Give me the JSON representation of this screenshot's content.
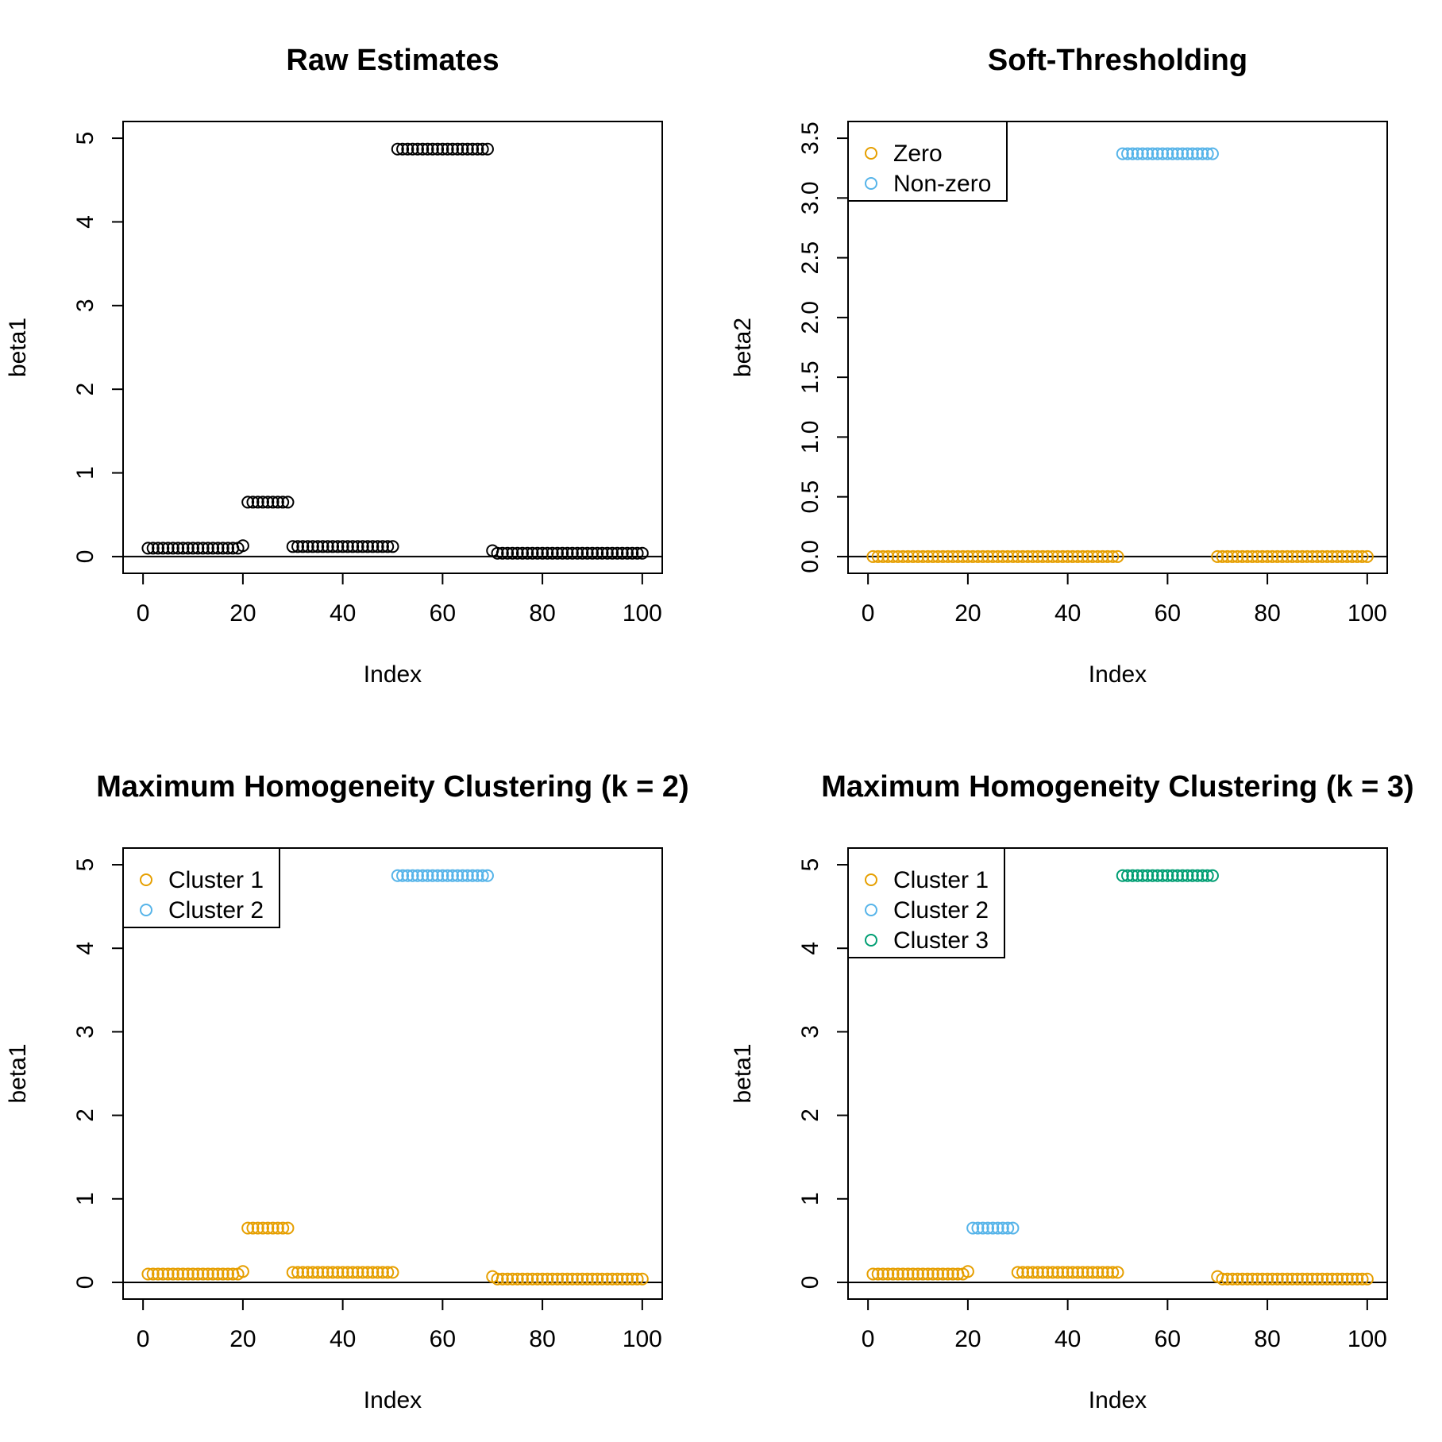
{
  "colors": {
    "black": "#000000",
    "orange": "#E69F00",
    "blue": "#56B4E9",
    "green": "#009E73"
  },
  "chart_data": [
    {
      "type": "scatter",
      "title": "Raw Estimates",
      "xlabel": "Index",
      "ylabel": "beta1",
      "xlim": [
        0,
        100
      ],
      "ylim": [
        0,
        5
      ],
      "xticks": [
        "0",
        "20",
        "40",
        "60",
        "80",
        "100"
      ],
      "yticks": [
        "0",
        "1",
        "2",
        "3",
        "4",
        "5"
      ],
      "hline": 0,
      "legend": null,
      "series": [
        {
          "color": "#000000",
          "segments": [
            {
              "x_from": 1,
              "x_to": 19,
              "y": 0.1
            },
            {
              "x_from": 20,
              "x_to": 20,
              "y": 0.13
            },
            {
              "x_from": 21,
              "x_to": 29,
              "y": 0.65
            },
            {
              "x_from": 30,
              "x_to": 50,
              "y": 0.12
            },
            {
              "x_from": 51,
              "x_to": 69,
              "y": 4.87
            },
            {
              "x_from": 70,
              "x_to": 70,
              "y": 0.07
            },
            {
              "x_from": 71,
              "x_to": 100,
              "y": 0.04
            }
          ]
        }
      ]
    },
    {
      "type": "scatter",
      "title": "Soft-Thresholding",
      "xlabel": "Index",
      "ylabel": "beta2",
      "xlim": [
        0,
        100
      ],
      "ylim": [
        0,
        3.5
      ],
      "xticks": [
        "0",
        "20",
        "40",
        "60",
        "80",
        "100"
      ],
      "yticks": [
        "0.0",
        "0.5",
        "1.0",
        "1.5",
        "2.0",
        "2.5",
        "3.0",
        "3.5"
      ],
      "hline": 0,
      "legend": {
        "position": "top-left",
        "entries": [
          "Zero",
          "Non-zero"
        ]
      },
      "series": [
        {
          "name": "Zero",
          "color": "#E69F00",
          "segments": [
            {
              "x_from": 1,
              "x_to": 50,
              "y": 0
            },
            {
              "x_from": 70,
              "x_to": 100,
              "y": 0
            }
          ]
        },
        {
          "name": "Non-zero",
          "color": "#56B4E9",
          "segments": [
            {
              "x_from": 51,
              "x_to": 69,
              "y": 3.37
            }
          ]
        }
      ]
    },
    {
      "type": "scatter",
      "title": "Maximum Homogeneity Clustering (k = 2)",
      "xlabel": "Index",
      "ylabel": "beta1",
      "xlim": [
        0,
        100
      ],
      "ylim": [
        0,
        5
      ],
      "xticks": [
        "0",
        "20",
        "40",
        "60",
        "80",
        "100"
      ],
      "yticks": [
        "0",
        "1",
        "2",
        "3",
        "4",
        "5"
      ],
      "hline": 0,
      "legend": {
        "position": "top-left",
        "entries": [
          "Cluster 1",
          "Cluster 2"
        ]
      },
      "series": [
        {
          "name": "Cluster 1",
          "color": "#E69F00",
          "segments": [
            {
              "x_from": 1,
              "x_to": 19,
              "y": 0.1
            },
            {
              "x_from": 20,
              "x_to": 20,
              "y": 0.13
            },
            {
              "x_from": 21,
              "x_to": 29,
              "y": 0.65
            },
            {
              "x_from": 30,
              "x_to": 50,
              "y": 0.12
            },
            {
              "x_from": 70,
              "x_to": 70,
              "y": 0.07
            },
            {
              "x_from": 71,
              "x_to": 100,
              "y": 0.04
            }
          ]
        },
        {
          "name": "Cluster 2",
          "color": "#56B4E9",
          "segments": [
            {
              "x_from": 51,
              "x_to": 69,
              "y": 4.87
            }
          ]
        }
      ]
    },
    {
      "type": "scatter",
      "title": "Maximum Homogeneity Clustering (k = 3)",
      "xlabel": "Index",
      "ylabel": "beta1",
      "xlim": [
        0,
        100
      ],
      "ylim": [
        0,
        5
      ],
      "xticks": [
        "0",
        "20",
        "40",
        "60",
        "80",
        "100"
      ],
      "yticks": [
        "0",
        "1",
        "2",
        "3",
        "4",
        "5"
      ],
      "hline": 0,
      "legend": {
        "position": "top-left",
        "entries": [
          "Cluster 1",
          "Cluster 2",
          "Cluster 3"
        ]
      },
      "series": [
        {
          "name": "Cluster 1",
          "color": "#E69F00",
          "segments": [
            {
              "x_from": 1,
              "x_to": 19,
              "y": 0.1
            },
            {
              "x_from": 20,
              "x_to": 20,
              "y": 0.13
            },
            {
              "x_from": 30,
              "x_to": 50,
              "y": 0.12
            },
            {
              "x_from": 70,
              "x_to": 70,
              "y": 0.07
            },
            {
              "x_from": 71,
              "x_to": 100,
              "y": 0.04
            }
          ]
        },
        {
          "name": "Cluster 2",
          "color": "#56B4E9",
          "segments": [
            {
              "x_from": 21,
              "x_to": 29,
              "y": 0.65
            }
          ]
        },
        {
          "name": "Cluster 3",
          "color": "#009E73",
          "segments": [
            {
              "x_from": 51,
              "x_to": 69,
              "y": 4.87
            }
          ]
        }
      ]
    }
  ]
}
